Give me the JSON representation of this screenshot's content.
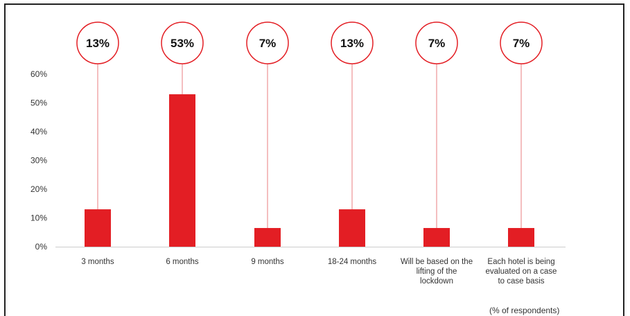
{
  "chart_data": {
    "type": "bar",
    "categories": [
      [
        "3 months"
      ],
      [
        "6 months"
      ],
      [
        "9 months"
      ],
      [
        "18-24 months"
      ],
      [
        "Will be based on the",
        "lifting of the",
        "lockdown"
      ],
      [
        "Each hotel is being",
        "evaluated on a case",
        "to case basis"
      ]
    ],
    "values": [
      13,
      53,
      6.5,
      13,
      6.5,
      6.5
    ],
    "data_labels": [
      "13%",
      "53%",
      "7%",
      "13%",
      "7%",
      "7%"
    ],
    "yticks": [
      "0%",
      "10%",
      "20%",
      "30%",
      "40%",
      "50%",
      "60%"
    ],
    "ylim": [
      0,
      60
    ],
    "grid": false,
    "note": "(% of respondents)",
    "colors": {
      "bar": "#e31e24",
      "bubble_stroke": "#e31e24",
      "connector": "#f0a8aa",
      "axis": "#cccccc"
    }
  }
}
